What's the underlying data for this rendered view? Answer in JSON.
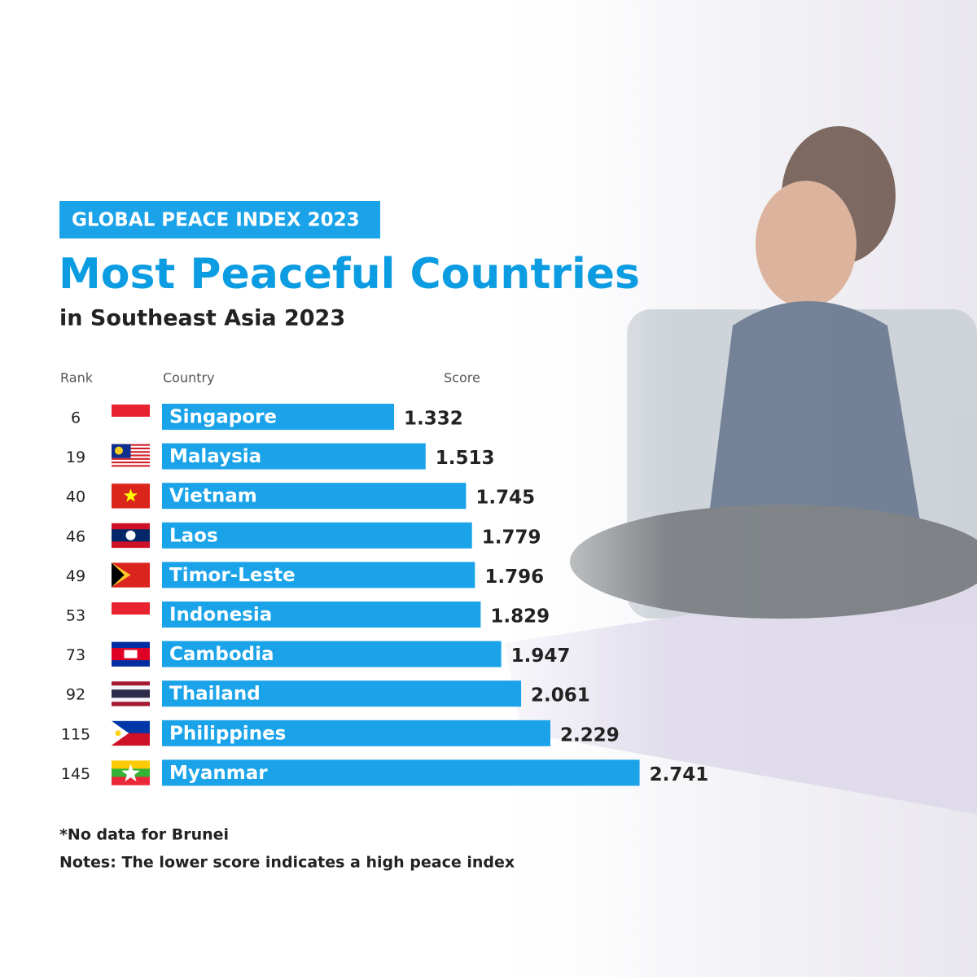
{
  "chart_data": {
    "type": "bar",
    "orientation": "horizontal",
    "badge": "GLOBAL PEACE INDEX 2023",
    "title": "Most Peaceful Countries",
    "subtitle": "in Southeast Asia 2023",
    "rank_header": "Rank",
    "category_header": "Country",
    "value_header": "Score",
    "ranks": [
      6,
      19,
      40,
      46,
      49,
      53,
      73,
      92,
      115,
      145
    ],
    "categories": [
      "Singapore",
      "Malaysia",
      "Vietnam",
      "Laos",
      "Timor-Leste",
      "Indonesia",
      "Cambodia",
      "Thailand",
      "Philippines",
      "Myanmar"
    ],
    "values": [
      1.332,
      1.513,
      1.745,
      1.779,
      1.796,
      1.829,
      1.947,
      2.061,
      2.229,
      2.741
    ],
    "color": "#1aa3e8",
    "xlim": [
      0,
      3
    ],
    "footnotes": [
      "*No data for Brunei",
      "Notes: The lower score indicates a high peace index"
    ]
  }
}
